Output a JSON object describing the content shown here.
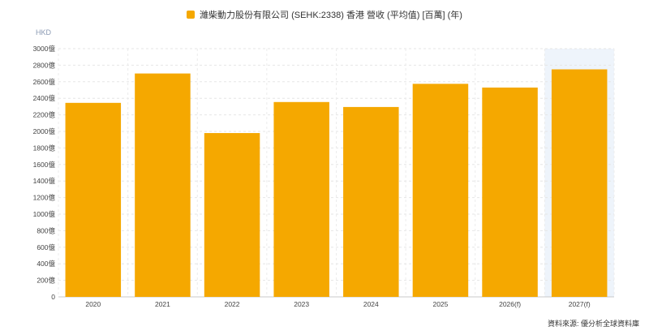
{
  "legend": {
    "label": "濰柴動力股份有限公司 (SEHK:2338) 香港 營收 (平均值) [百萬] (年)",
    "color": "#f5a800"
  },
  "unit_label": "HKD",
  "source": "資料來源: 優分析全球資料庫",
  "chart_data": {
    "type": "bar",
    "categories": [
      "2020",
      "2021",
      "2022",
      "2023",
      "2024",
      "2025",
      "2026(f)",
      "2027(f)"
    ],
    "series": [
      {
        "name": "濰柴動力股份有限公司 (SEHK:2338) 香港 營收 (平均值) [百萬] (年)",
        "values": [
          2345,
          2700,
          1980,
          2355,
          2295,
          2575,
          2530,
          2750
        ],
        "color": "#f5a800"
      }
    ],
    "ylim": [
      0,
      3000
    ],
    "y_ticks": [
      "0",
      "200億",
      "400億",
      "600億",
      "800億",
      "1000億",
      "1200億",
      "1400億",
      "1600億",
      "1800億",
      "2000億",
      "2200億",
      "2400億",
      "2600億",
      "2800億",
      "3000億"
    ],
    "y_tick_values": [
      0,
      200,
      400,
      600,
      800,
      1000,
      1200,
      1400,
      1600,
      1800,
      2000,
      2200,
      2400,
      2600,
      2800,
      3000
    ],
    "highlight_category": "2027(f)",
    "grid": true
  }
}
